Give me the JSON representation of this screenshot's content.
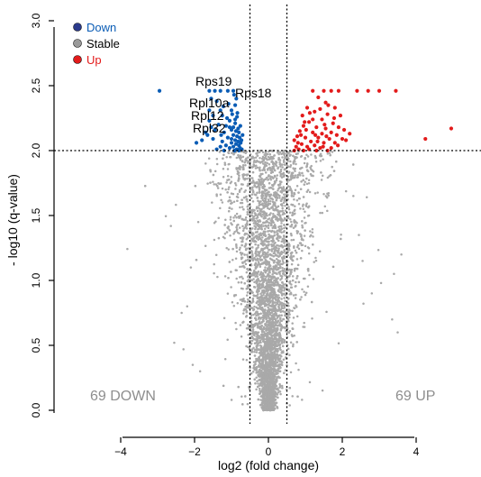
{
  "chart_data": {
    "type": "scatter",
    "title": "",
    "xlabel": "log2 (fold change)",
    "ylabel": "- log10 (q-value)",
    "xlim": [
      -4.2,
      5.0
    ],
    "ylim": [
      0,
      3.0
    ],
    "xticks": [
      "−4",
      "−2",
      "0",
      "2",
      "4"
    ],
    "xtick_values": [
      -4,
      -2,
      0,
      2,
      4
    ],
    "yticks": [
      "0.0",
      "0.5",
      "1.0",
      "1.5",
      "2.0",
      "2.5",
      "3.0"
    ],
    "ytick_values": [
      0,
      0.5,
      1.0,
      1.5,
      2.0,
      2.5,
      3.0
    ],
    "thresholds": {
      "x": [
        -0.5,
        0.5
      ],
      "y": 2.0
    },
    "legend": {
      "position": "top-left",
      "entries": [
        {
          "name": "Down",
          "color": "#0a5cb5"
        },
        {
          "name": "Stable",
          "color": "#a9a9a9"
        },
        {
          "name": "Up",
          "color": "#e31b1b"
        }
      ]
    },
    "annotations": {
      "down_count": "69 DOWN",
      "up_count": "69 UP",
      "genes": [
        {
          "name": "Rps19",
          "x": -1.35,
          "y": 2.46
        },
        {
          "name": "Rps18",
          "x": -0.95,
          "y": 2.46
        },
        {
          "name": "Rpl10a",
          "x": -1.25,
          "y": 2.31
        },
        {
          "name": "Rpl12",
          "x": -1.05,
          "y": 2.23
        },
        {
          "name": "Rpl32",
          "x": -1.0,
          "y": 2.16
        }
      ]
    },
    "series": [
      {
        "name": "Down",
        "color": "#0a5cb5",
        "points": [
          [
            -2.95,
            2.46
          ],
          [
            -1.6,
            2.46
          ],
          [
            -1.45,
            2.46
          ],
          [
            -1.3,
            2.46
          ],
          [
            -1.1,
            2.46
          ],
          [
            -0.95,
            2.46
          ],
          [
            -1.55,
            2.4
          ],
          [
            -1.4,
            2.38
          ],
          [
            -0.9,
            2.35
          ],
          [
            -1.6,
            2.31
          ],
          [
            -1.3,
            2.31
          ],
          [
            -1.0,
            2.31
          ],
          [
            -1.5,
            2.27
          ],
          [
            -1.25,
            2.27
          ],
          [
            -0.85,
            2.26
          ],
          [
            -1.6,
            2.23
          ],
          [
            -1.05,
            2.23
          ],
          [
            -0.9,
            2.21
          ],
          [
            -1.35,
            2.2
          ],
          [
            -1.15,
            2.19
          ],
          [
            -0.95,
            2.18
          ],
          [
            -0.82,
            2.17
          ],
          [
            -1.45,
            2.16
          ],
          [
            -1.0,
            2.16
          ],
          [
            -0.88,
            2.15
          ],
          [
            -1.2,
            2.14
          ],
          [
            -0.8,
            2.14
          ],
          [
            -1.65,
            2.12
          ],
          [
            -0.95,
            2.12
          ],
          [
            -0.85,
            2.11
          ],
          [
            -1.1,
            2.1
          ],
          [
            -0.78,
            2.1
          ],
          [
            -1.5,
            2.09
          ],
          [
            -0.9,
            2.08
          ],
          [
            -1.25,
            2.07
          ],
          [
            -0.82,
            2.07
          ],
          [
            -1.0,
            2.06
          ],
          [
            -0.75,
            2.06
          ],
          [
            -1.8,
            2.08
          ],
          [
            -1.95,
            2.06
          ],
          [
            -0.88,
            2.05
          ],
          [
            -1.15,
            2.04
          ],
          [
            -0.8,
            2.04
          ],
          [
            -1.3,
            2.03
          ],
          [
            -0.95,
            2.03
          ],
          [
            -0.77,
            2.02
          ],
          [
            -1.05,
            2.02
          ],
          [
            -0.86,
            2.01
          ],
          [
            -1.4,
            2.01
          ],
          [
            -0.72,
            2.01
          ],
          [
            -0.92,
            2.0
          ],
          [
            -1.2,
            2.0
          ],
          [
            -0.8,
            2.0
          ],
          [
            -1.0,
            2.09
          ],
          [
            -0.7,
            2.12
          ],
          [
            -1.12,
            2.25
          ],
          [
            -0.98,
            2.28
          ],
          [
            -1.22,
            2.34
          ],
          [
            -0.87,
            2.4
          ],
          [
            -1.05,
            2.18
          ],
          [
            -0.76,
            2.19
          ],
          [
            -1.28,
            2.12
          ],
          [
            -0.9,
            2.24
          ],
          [
            -1.55,
            2.18
          ],
          [
            -0.84,
            2.29
          ],
          [
            -1.7,
            2.14
          ],
          [
            -0.73,
            2.08
          ],
          [
            -1.08,
            2.36
          ],
          [
            -0.93,
            2.43
          ]
        ]
      },
      {
        "name": "Up",
        "color": "#e31b1b",
        "points": [
          [
            1.2,
            2.46
          ],
          [
            1.5,
            2.46
          ],
          [
            1.7,
            2.46
          ],
          [
            1.9,
            2.46
          ],
          [
            2.4,
            2.46
          ],
          [
            2.7,
            2.46
          ],
          [
            3.0,
            2.46
          ],
          [
            3.45,
            2.46
          ],
          [
            1.35,
            2.41
          ],
          [
            1.55,
            2.37
          ],
          [
            1.05,
            2.33
          ],
          [
            1.8,
            2.33
          ],
          [
            1.25,
            2.3
          ],
          [
            1.6,
            2.28
          ],
          [
            1.95,
            2.27
          ],
          [
            1.45,
            2.24
          ],
          [
            1.1,
            2.22
          ],
          [
            1.75,
            2.21
          ],
          [
            0.95,
            2.19
          ],
          [
            1.3,
            2.18
          ],
          [
            1.55,
            2.17
          ],
          [
            2.05,
            2.16
          ],
          [
            0.85,
            2.15
          ],
          [
            1.2,
            2.14
          ],
          [
            1.45,
            2.13
          ],
          [
            1.85,
            2.12
          ],
          [
            0.78,
            2.11
          ],
          [
            1.0,
            2.1
          ],
          [
            1.35,
            2.1
          ],
          [
            1.65,
            2.09
          ],
          [
            2.0,
            2.09
          ],
          [
            0.7,
            2.08
          ],
          [
            1.15,
            2.07
          ],
          [
            1.5,
            2.06
          ],
          [
            1.8,
            2.06
          ],
          [
            0.9,
            2.05
          ],
          [
            1.25,
            2.04
          ],
          [
            0.75,
            2.03
          ],
          [
            1.05,
            2.03
          ],
          [
            1.4,
            2.02
          ],
          [
            1.7,
            2.02
          ],
          [
            0.82,
            2.01
          ],
          [
            1.1,
            2.01
          ],
          [
            0.7,
            2.0
          ],
          [
            0.95,
            2.0
          ],
          [
            1.3,
            2.0
          ],
          [
            1.6,
            2.0
          ],
          [
            2.1,
            2.08
          ],
          [
            2.2,
            2.13
          ],
          [
            4.25,
            2.09
          ],
          [
            4.95,
            2.17
          ],
          [
            1.9,
            2.18
          ],
          [
            1.4,
            2.32
          ],
          [
            1.7,
            2.14
          ],
          [
            0.88,
            2.12
          ],
          [
            1.2,
            2.24
          ],
          [
            1.52,
            2.2
          ],
          [
            1.02,
            2.16
          ],
          [
            1.78,
            2.25
          ],
          [
            0.8,
            2.06
          ],
          [
            1.62,
            2.35
          ],
          [
            1.33,
            2.07
          ],
          [
            1.12,
            2.29
          ],
          [
            1.48,
            2.03
          ],
          [
            0.98,
            2.22
          ],
          [
            1.88,
            2.04
          ],
          [
            1.27,
            2.12
          ],
          [
            1.57,
            2.11
          ],
          [
            0.92,
            2.27
          ]
        ]
      },
      {
        "name": "Stable",
        "color": "#a9a9a9",
        "description": "dense cloud of non-significant genes, V-shaped around log2FC = 0, y from 0 to 2.0",
        "extra_points": [
          [
            -2.55,
            0.52
          ],
          [
            -2.3,
            0.47
          ],
          [
            -2.2,
            0.8
          ],
          [
            -2.1,
            1.1
          ],
          [
            -1.9,
            1.45
          ],
          [
            -1.7,
            1.9
          ],
          [
            -2.05,
            0.35
          ],
          [
            -1.85,
            0.3
          ],
          [
            3.4,
            1.05
          ],
          [
            3.05,
            0.98
          ],
          [
            3.35,
            0.7
          ],
          [
            3.5,
            0.6
          ],
          [
            2.55,
            1.15
          ],
          [
            2.8,
            0.9
          ],
          [
            2.3,
            1.65
          ],
          [
            2.45,
            1.35
          ],
          [
            3.6,
            1.2
          ],
          [
            -2.35,
            0.75
          ]
        ]
      }
    ]
  }
}
